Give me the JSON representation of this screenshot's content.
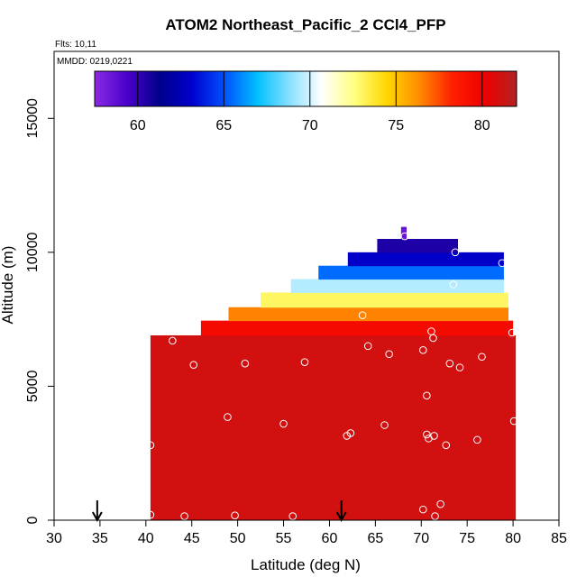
{
  "chart_data": {
    "type": "heatmap",
    "title": "ATOM2 Northeast_Pacific_2 CCl4_PFP",
    "flights_label": "Flts: 10,11",
    "dates_label": "MMDD: 0219,0221",
    "xlabel": "Latitude (deg N)",
    "ylabel": "Altitude (m)",
    "xlim": [
      30,
      85
    ],
    "ylim": [
      0,
      17500
    ],
    "x_ticks": [
      "30",
      "35",
      "40",
      "45",
      "50",
      "55",
      "60",
      "65",
      "70",
      "75",
      "80",
      "85"
    ],
    "y_ticks": [
      "0",
      "5000",
      "10000",
      "15000"
    ],
    "colorbar": {
      "range": [
        57.5,
        82
      ],
      "ticks": [
        "60",
        "65",
        "70",
        "75",
        "80"
      ],
      "colors": [
        "#8a2be2",
        "#4b00cc",
        "#00008b",
        "#0000cd",
        "#0050ff",
        "#00bfff",
        "#87e0ff",
        "#ffffff",
        "#ffff80",
        "#ffd700",
        "#ff8c00",
        "#ff2000",
        "#ee0000",
        "#b22222"
      ]
    },
    "field_bands": [
      {
        "alt_min": 0,
        "alt_max": 6900,
        "lat_min": 40.5,
        "lat_max": 80.3,
        "value": 81.0
      },
      {
        "alt_min": 6900,
        "alt_max": 7450,
        "lat_min": 46.0,
        "lat_max": 80.0,
        "value": 79.5
      },
      {
        "alt_min": 7450,
        "alt_max": 7950,
        "lat_min": 49.0,
        "lat_max": 79.5,
        "value": 76.5
      },
      {
        "alt_min": 7950,
        "alt_max": 8500,
        "lat_min": 52.5,
        "lat_max": 79.5,
        "value": 73.0
      },
      {
        "alt_min": 8500,
        "alt_max": 9000,
        "lat_min": 55.8,
        "lat_max": 79.0,
        "value": 69.5
      },
      {
        "alt_min": 9000,
        "alt_max": 9500,
        "lat_min": 58.8,
        "lat_max": 79.0,
        "value": 65.5
      },
      {
        "alt_min": 9500,
        "alt_max": 10000,
        "lat_min": 62.0,
        "lat_max": 79.0,
        "value": 63.0
      },
      {
        "alt_min": 10000,
        "alt_max": 10500,
        "lat_min": 65.2,
        "lat_max": 74.0,
        "value": 60.5
      },
      {
        "alt_min": 10500,
        "alt_max": 10950,
        "lat_min": 67.8,
        "lat_max": 68.4,
        "value": 58.5
      }
    ],
    "samples": [
      {
        "lat": 40.5,
        "alt": 200
      },
      {
        "lat": 44.2,
        "alt": 150
      },
      {
        "lat": 49.7,
        "alt": 180
      },
      {
        "lat": 56.0,
        "alt": 150
      },
      {
        "lat": 40.5,
        "alt": 2800
      },
      {
        "lat": 42.9,
        "alt": 6700
      },
      {
        "lat": 45.2,
        "alt": 5800
      },
      {
        "lat": 48.9,
        "alt": 3850
      },
      {
        "lat": 50.8,
        "alt": 5850
      },
      {
        "lat": 55.0,
        "alt": 3600
      },
      {
        "lat": 57.3,
        "alt": 5900
      },
      {
        "lat": 61.9,
        "alt": 3150
      },
      {
        "lat": 62.3,
        "alt": 3250
      },
      {
        "lat": 63.6,
        "alt": 7650
      },
      {
        "lat": 64.2,
        "alt": 6500
      },
      {
        "lat": 66.0,
        "alt": 3550
      },
      {
        "lat": 66.5,
        "alt": 6200
      },
      {
        "lat": 68.2,
        "alt": 10600
      },
      {
        "lat": 70.2,
        "alt": 6350
      },
      {
        "lat": 70.2,
        "alt": 400
      },
      {
        "lat": 70.6,
        "alt": 4650
      },
      {
        "lat": 70.6,
        "alt": 3200
      },
      {
        "lat": 70.8,
        "alt": 3050
      },
      {
        "lat": 71.1,
        "alt": 7050
      },
      {
        "lat": 71.3,
        "alt": 6800
      },
      {
        "lat": 71.4,
        "alt": 3150
      },
      {
        "lat": 71.5,
        "alt": 150
      },
      {
        "lat": 72.1,
        "alt": 600
      },
      {
        "lat": 72.7,
        "alt": 2800
      },
      {
        "lat": 73.1,
        "alt": 5850
      },
      {
        "lat": 73.5,
        "alt": 8800
      },
      {
        "lat": 73.7,
        "alt": 10000
      },
      {
        "lat": 74.2,
        "alt": 5700
      },
      {
        "lat": 76.1,
        "alt": 3000
      },
      {
        "lat": 76.6,
        "alt": 6100
      },
      {
        "lat": 78.8,
        "alt": 9600
      },
      {
        "lat": 79.9,
        "alt": 7000
      },
      {
        "lat": 80.1,
        "alt": 3700
      }
    ],
    "arrows_lat": [
      34.7,
      61.3
    ]
  }
}
